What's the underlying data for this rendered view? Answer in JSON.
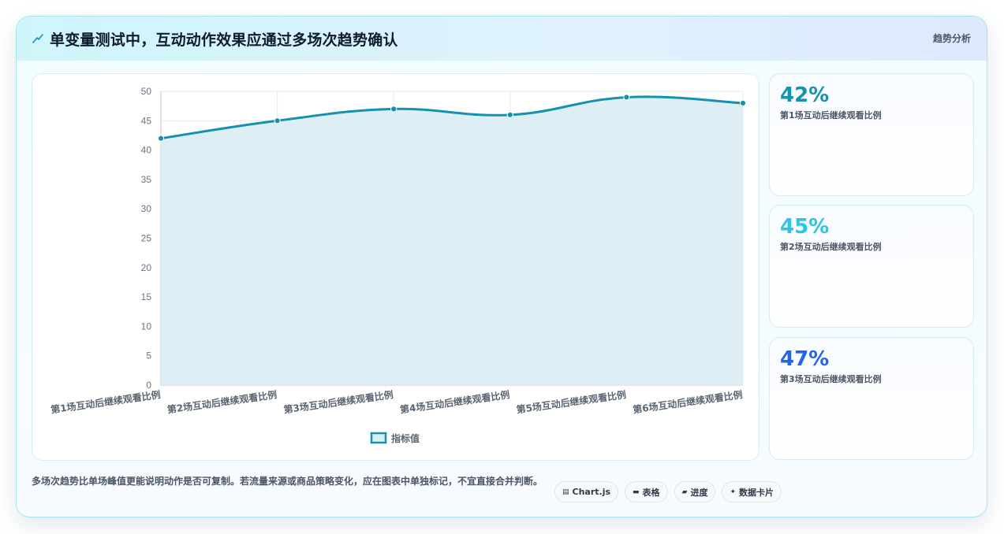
{
  "header": {
    "title": "单变量测试中，互动动作效果应通过多场次趋势确认",
    "tag": "趋势分析",
    "icon": "lightning-icon"
  },
  "colors": {
    "line": "#1691ae",
    "fill": "#dcedf4",
    "kpi1": "#1691ae",
    "kpi2": "#2ec5de",
    "kpi3": "#2563eb"
  },
  "chart_data": {
    "type": "line",
    "categories": [
      "第1场互动后继续观看比例",
      "第2场互动后继续观看比例",
      "第3场互动后继续观看比例",
      "第4场互动后继续观看比例",
      "第5场互动后继续观看比例",
      "第6场互动后继续观看比例"
    ],
    "series": [
      {
        "name": "指标值",
        "values": [
          42,
          45,
          47,
          46,
          49,
          48
        ]
      }
    ],
    "ylim": [
      0,
      50
    ],
    "yticks": [
      0,
      5,
      10,
      15,
      20,
      25,
      30,
      35,
      40,
      45,
      50
    ],
    "legend": "bottom",
    "grid": true,
    "fill": true
  },
  "kpis": [
    {
      "value": "42%",
      "label": "第1场互动后继续观看比例"
    },
    {
      "value": "45%",
      "label": "第2场互动后继续观看比例"
    },
    {
      "value": "47%",
      "label": "第3场互动后继续观看比例"
    }
  ],
  "footer": {
    "text": "多场次趋势比单场峰值更能说明动作是否可复制。若流量来源或商品策略变化，应在图表中单独标记，不宜直接合并判断。",
    "chips": [
      {
        "icon": "▤",
        "label": "Chart.js"
      },
      {
        "icon": "▬",
        "label": "表格"
      },
      {
        "icon": "▰",
        "label": "进度"
      },
      {
        "icon": "✦",
        "label": "数据卡片"
      }
    ]
  }
}
